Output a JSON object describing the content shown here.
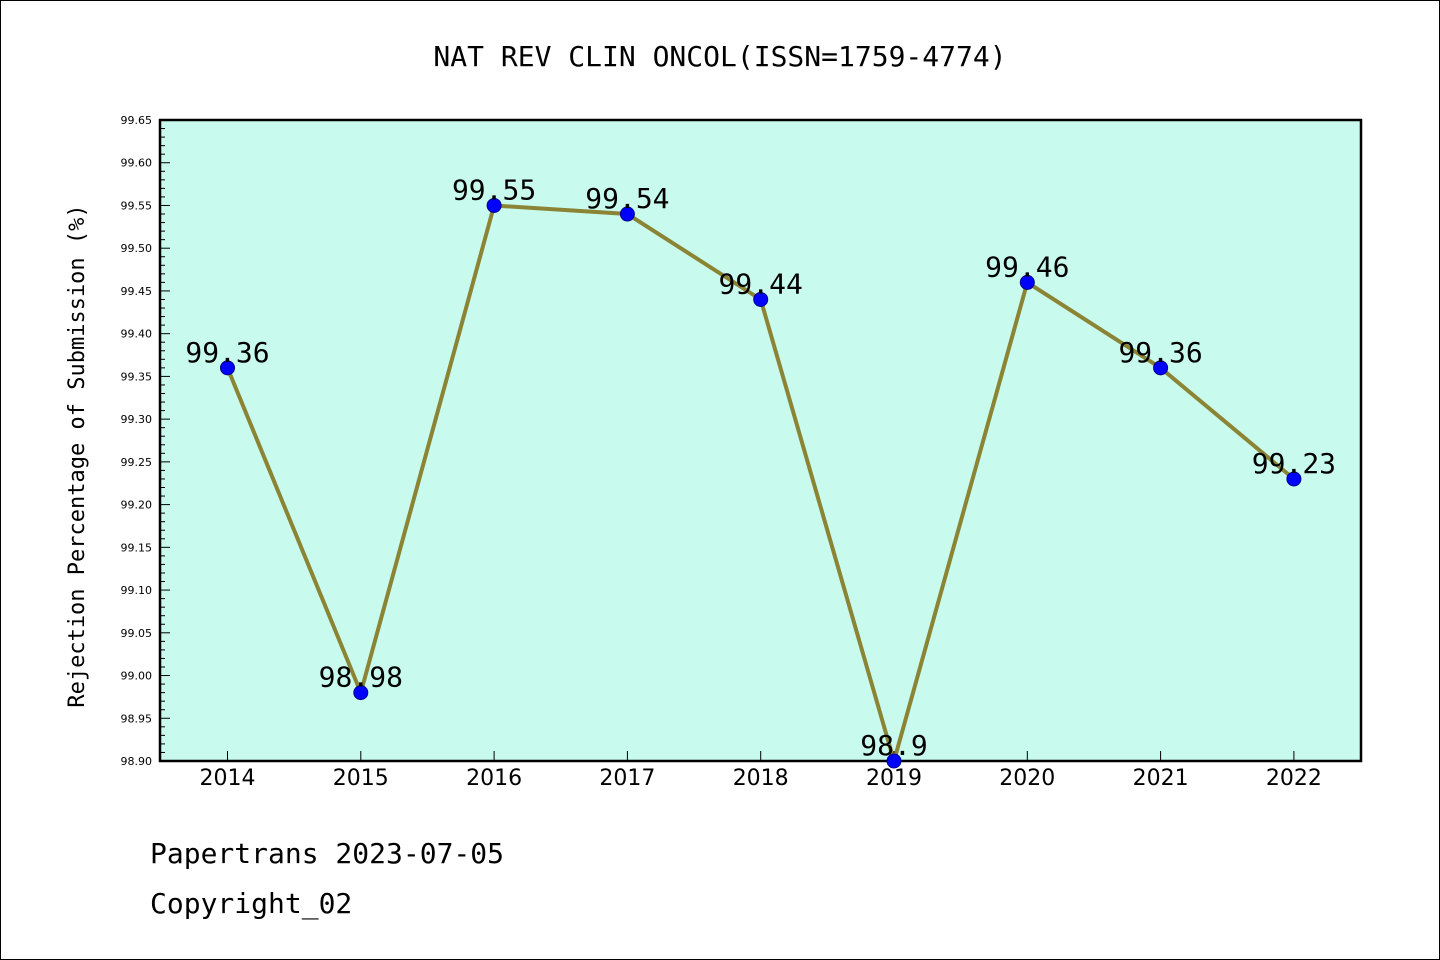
{
  "chart_data": {
    "type": "line",
    "title": "NAT REV CLIN ONCOL(ISSN=1759-4774)",
    "xlabel": "",
    "ylabel": "Rejection Percentage of Submission (%)",
    "categories": [
      "2014",
      "2015",
      "2016",
      "2017",
      "2018",
      "2019",
      "2020",
      "2021",
      "2022"
    ],
    "series": [
      {
        "values": [
          99.36,
          98.98,
          99.55,
          99.54,
          99.44,
          98.9,
          99.46,
          99.36,
          99.23
        ],
        "labels": [
          "99.36",
          "98.98",
          "99.55",
          "99.54",
          "99.44",
          "98.9",
          "99.46",
          "99.36",
          "99.23"
        ]
      }
    ],
    "ylim": [
      98.9,
      99.65
    ],
    "yticks": [
      "98.90",
      "98.95",
      "99.00",
      "99.05",
      "99.10",
      "99.15",
      "99.20",
      "99.25",
      "99.30",
      "99.35",
      "99.40",
      "99.45",
      "99.50",
      "99.55",
      "99.60",
      "99.65"
    ],
    "grid": false,
    "legend": "none",
    "colors": {
      "plot_background": "#c8fbee",
      "line": "#8b8434",
      "marker": "#0000ff"
    }
  },
  "footer": {
    "line1": "Papertrans 2023-07-05",
    "line2": "Copyright_02"
  }
}
